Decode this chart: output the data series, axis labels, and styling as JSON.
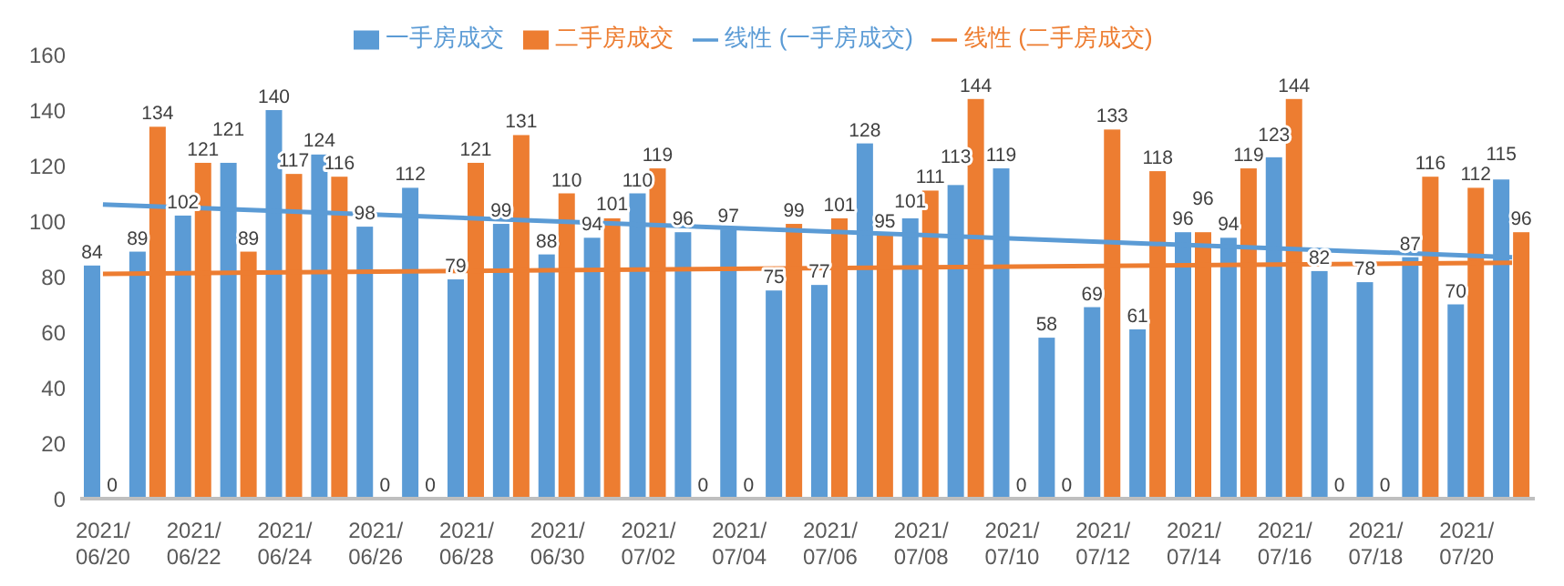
{
  "chart_data": {
    "type": "bar",
    "categories": [
      "2021/06/20",
      null,
      "2021/06/22",
      null,
      "2021/06/24",
      null,
      "2021/06/26",
      null,
      "2021/06/28",
      null,
      "2021/06/30",
      null,
      "2021/07/02",
      null,
      "2021/07/04",
      null,
      "2021/07/06",
      null,
      "2021/07/08",
      null,
      "2021/07/10",
      null,
      "2021/07/12",
      null,
      "2021/07/14",
      null,
      "2021/07/16",
      null,
      "2021/07/18",
      null,
      "2021/07/20",
      null
    ],
    "series": [
      {
        "name": "一手房成交",
        "color": "#5b9bd5",
        "values": [
          84,
          89,
          102,
          121,
          140,
          124,
          98,
          112,
          79,
          99,
          88,
          94,
          110,
          96,
          97,
          75,
          77,
          128,
          101,
          113,
          119,
          58,
          69,
          61,
          96,
          94,
          123,
          82,
          78,
          87,
          70,
          115
        ],
        "value_labels": [
          "84",
          "89",
          "102",
          "121",
          "140",
          "124",
          "98",
          "112",
          "79",
          "99",
          "88",
          "94",
          "110",
          "96",
          "97",
          "75",
          "77",
          "128",
          "101",
          "113",
          "119",
          "58",
          "69",
          "61",
          "96",
          "94",
          "123",
          "82",
          "78",
          "87",
          "70",
          "115"
        ]
      },
      {
        "name": "二手房成交",
        "color": "#ed7d31",
        "values": [
          0,
          134,
          121,
          89,
          117,
          116,
          0,
          0,
          121,
          131,
          110,
          101,
          119,
          0,
          0,
          99,
          101,
          95,
          111,
          144,
          0,
          0,
          133,
          118,
          96,
          119,
          144,
          0,
          0,
          116,
          112,
          96
        ],
        "value_labels": [
          "0",
          "134",
          "121",
          "89",
          "117",
          "116",
          "0",
          "0",
          "121",
          "131",
          "110",
          "101",
          "119",
          "0",
          "0",
          "99",
          "101",
          "95",
          "111",
          "144",
          "0",
          "0",
          "133",
          "118",
          "96",
          "119",
          "144",
          "0",
          "0",
          "116",
          "112",
          "96"
        ]
      },
      {
        "name": "线性 (一手房成交)",
        "type": "line",
        "color": "#5b9bd5",
        "values": [
          106,
          null,
          null,
          null,
          null,
          null,
          null,
          null,
          null,
          null,
          null,
          null,
          null,
          null,
          null,
          null,
          null,
          null,
          null,
          null,
          null,
          null,
          null,
          null,
          null,
          null,
          null,
          null,
          null,
          null,
          null,
          87
        ]
      },
      {
        "name": "线性 (二手房成交)",
        "type": "line",
        "color": "#ed7d31",
        "values": [
          81,
          null,
          null,
          null,
          null,
          null,
          null,
          null,
          null,
          null,
          null,
          null,
          null,
          null,
          null,
          null,
          null,
          null,
          null,
          null,
          null,
          null,
          null,
          null,
          null,
          null,
          null,
          null,
          null,
          null,
          null,
          85
        ]
      }
    ],
    "ylim": [
      0,
      160
    ],
    "yticks": [
      0,
      20,
      40,
      60,
      80,
      100,
      120,
      140,
      160
    ],
    "grid": false,
    "legend": "top",
    "marker": "none",
    "line_style": "solid"
  }
}
